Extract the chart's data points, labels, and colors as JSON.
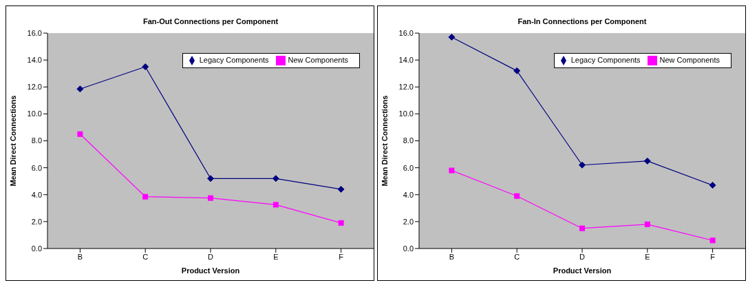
{
  "chart_data": [
    {
      "type": "line",
      "title": "Fan-Out Connections per Component",
      "xlabel": "Product Version",
      "ylabel": "Mean Direct Connections",
      "categories": [
        "B",
        "C",
        "D",
        "E",
        "F"
      ],
      "series": [
        {
          "name": "Legacy Components",
          "color": "#000080",
          "marker": "diamond",
          "values": [
            11.85,
            13.5,
            5.2,
            5.2,
            4.4
          ]
        },
        {
          "name": "New Components",
          "color": "#ff00ff",
          "marker": "square",
          "values": [
            8.5,
            3.85,
            3.75,
            3.25,
            1.9
          ]
        }
      ],
      "ylim": [
        0,
        16
      ],
      "yticks": [
        {
          "value": 0,
          "label": "0.0"
        },
        {
          "value": 2,
          "label": "2.0"
        },
        {
          "value": 4,
          "label": "4.0"
        },
        {
          "value": 6,
          "label": "6.0"
        },
        {
          "value": 8,
          "label": "8.0"
        },
        {
          "value": 10,
          "label": "10.0"
        },
        {
          "value": 12,
          "label": "12.0"
        },
        {
          "value": 14,
          "label": "14.0"
        },
        {
          "value": 16,
          "label": "16.0"
        }
      ],
      "legend": "top right"
    },
    {
      "type": "line",
      "title": "Fan-In Connections per Component",
      "xlabel": "Product Version",
      "ylabel": "Mean Direct Connections",
      "categories": [
        "B",
        "C",
        "D",
        "E",
        "F"
      ],
      "series": [
        {
          "name": "Legacy Components",
          "color": "#000080",
          "marker": "diamond",
          "values": [
            15.7,
            13.2,
            6.2,
            6.5,
            4.7
          ]
        },
        {
          "name": "New Components",
          "color": "#ff00ff",
          "marker": "square",
          "values": [
            5.8,
            3.9,
            1.5,
            1.8,
            0.6
          ]
        }
      ],
      "ylim": [
        0,
        16
      ],
      "yticks": [
        {
          "value": 0,
          "label": "0.0"
        },
        {
          "value": 2,
          "label": "2.0"
        },
        {
          "value": 4,
          "label": "4.0"
        },
        {
          "value": 6,
          "label": "6.0"
        },
        {
          "value": 8,
          "label": "8.0"
        },
        {
          "value": 10,
          "label": "10.0"
        },
        {
          "value": 12,
          "label": "12.0"
        },
        {
          "value": 14,
          "label": "14.0"
        },
        {
          "value": 16,
          "label": "16.0"
        }
      ],
      "legend": "top right"
    }
  ]
}
